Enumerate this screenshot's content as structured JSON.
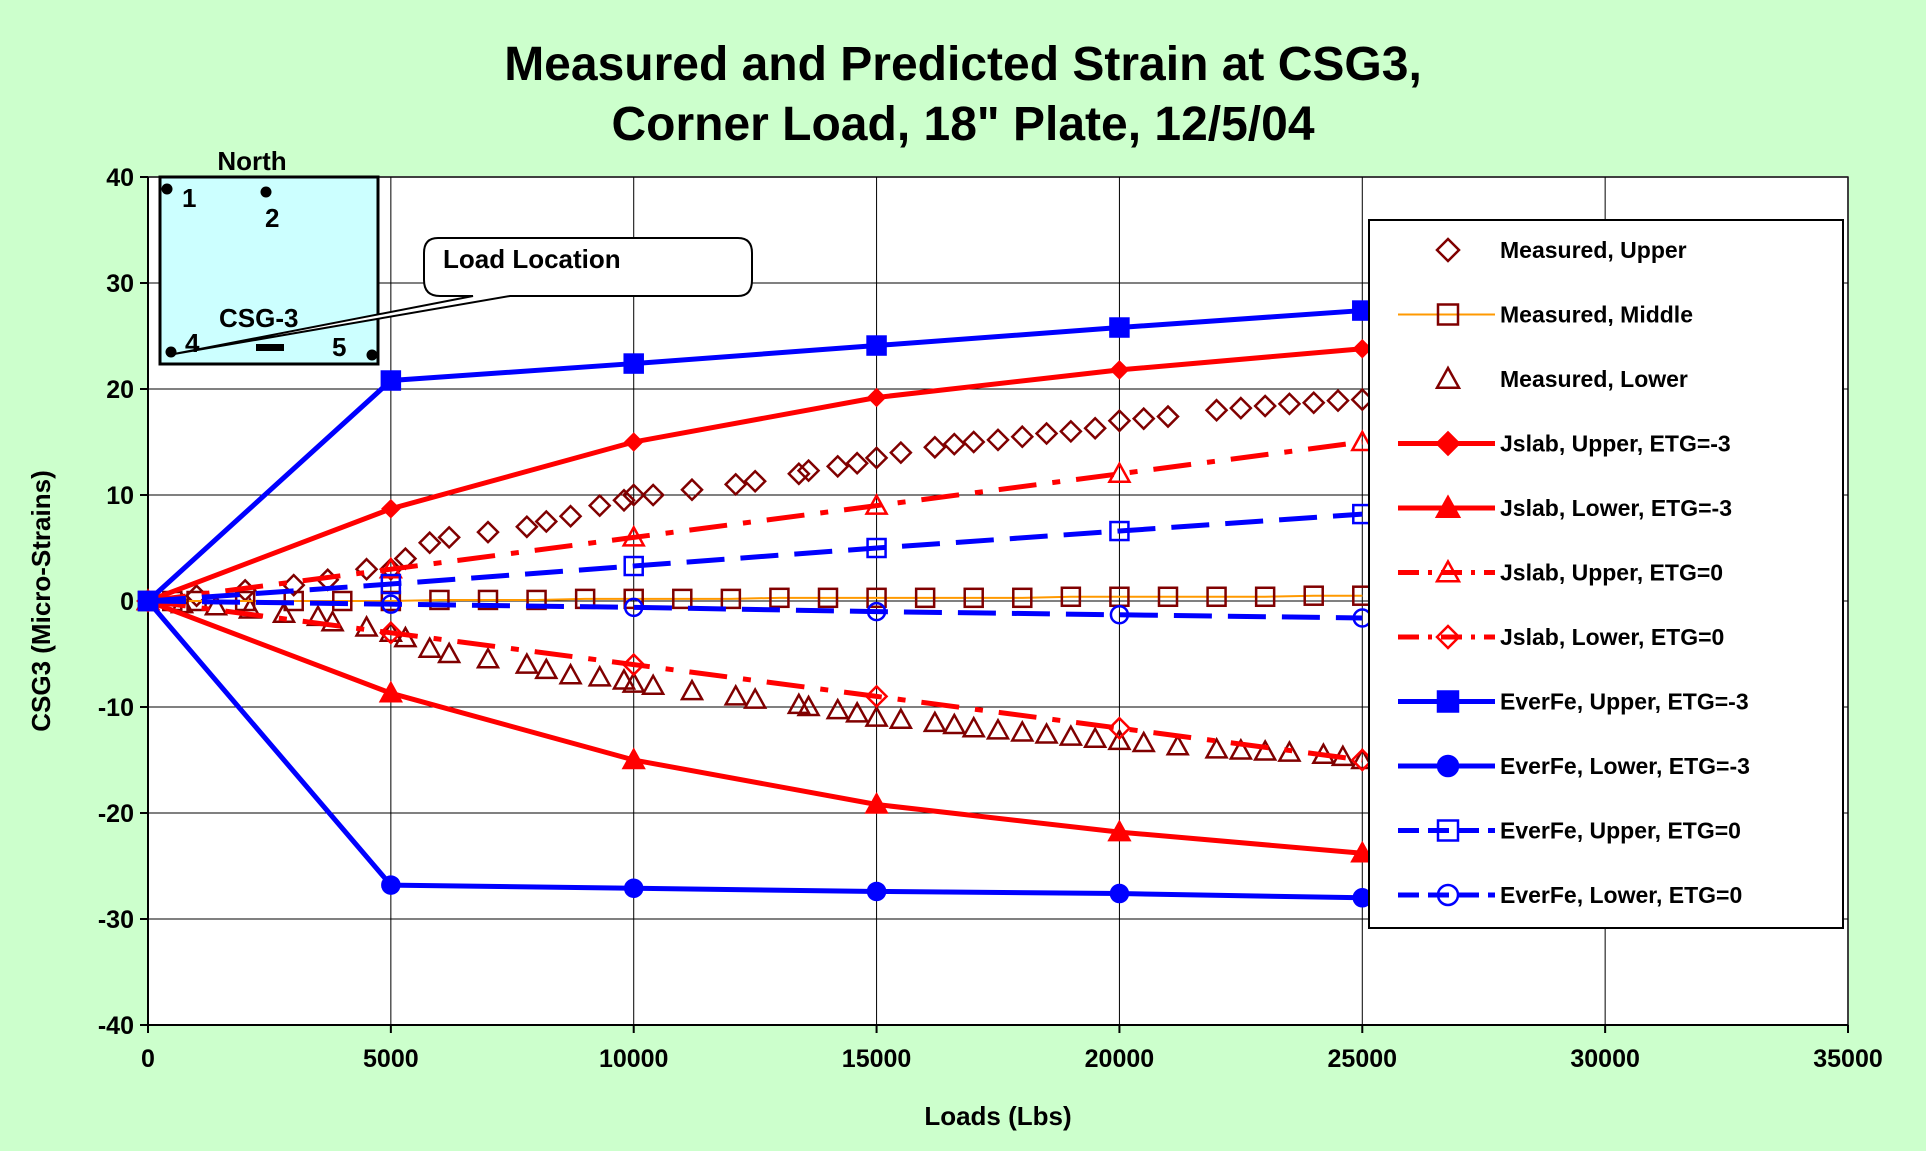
{
  "chart_data": {
    "type": "line",
    "title_lines": [
      "Measured and Predicted Strain at CSG3,",
      "Corner Load, 18\" Plate, 12/5/04"
    ],
    "xlabel": "Loads (Lbs)",
    "ylabel": "CSG3 (Micro-Strains)",
    "xlim": [
      0,
      35000
    ],
    "ylim": [
      -40,
      40
    ],
    "x_ticks": [
      0,
      5000,
      10000,
      15000,
      20000,
      25000,
      30000,
      35000
    ],
    "x_tick_labels": [
      "0",
      "5000",
      "10000",
      "15000",
      "20000",
      "25000",
      "30000",
      "35000"
    ],
    "y_ticks": [
      -40,
      -30,
      -20,
      -10,
      0,
      10,
      20,
      30,
      40
    ],
    "y_tick_labels": [
      "-40",
      "-30",
      "-20",
      "-10",
      "0",
      "10",
      "20",
      "30",
      "40"
    ],
    "grid": true,
    "legend_position": "right",
    "series": [
      {
        "name": "Measured, Upper",
        "marker": "diamond-open",
        "color": "#800000",
        "line": "none",
        "x": [
          0,
          1000,
          2000,
          3000,
          3700,
          4500,
          5000,
          5300,
          5800,
          6200,
          7000,
          7800,
          8200,
          8700,
          9300,
          9800,
          10000,
          10400,
          11200,
          12100,
          12500,
          13400,
          13600,
          14200,
          14600,
          15000,
          15500,
          16200,
          16600,
          17000,
          17500,
          18000,
          18500,
          19000,
          19500,
          20000,
          20500,
          21000,
          22000,
          22500,
          23000,
          23500,
          24000,
          24500,
          25000
        ],
        "y": [
          0,
          0.5,
          1,
          1.5,
          2,
          3,
          3,
          4,
          5.5,
          6,
          6.5,
          7,
          7.5,
          8,
          9,
          9.5,
          10,
          10,
          10.5,
          11,
          11.3,
          12,
          12.3,
          12.7,
          13,
          13.5,
          14,
          14.5,
          14.8,
          15,
          15.2,
          15.5,
          15.8,
          16,
          16.3,
          17,
          17.2,
          17.4,
          18,
          18.2,
          18.4,
          18.6,
          18.7,
          18.9,
          19
        ]
      },
      {
        "name": "Measured, Middle",
        "marker": "square-open",
        "color": "#800000",
        "line": "#ff9900",
        "x": [
          0,
          500,
          1000,
          2000,
          3000,
          4000,
          5000,
          6000,
          7000,
          8000,
          9000,
          10000,
          11000,
          12000,
          13000,
          14000,
          15000,
          16000,
          17000,
          18000,
          19000,
          20000,
          21000,
          22000,
          23000,
          24000,
          25000
        ],
        "y": [
          0,
          0,
          0,
          0,
          0,
          0,
          0,
          0.1,
          0.1,
          0.1,
          0.2,
          0.2,
          0.2,
          0.2,
          0.3,
          0.3,
          0.3,
          0.3,
          0.3,
          0.3,
          0.4,
          0.4,
          0.4,
          0.4,
          0.4,
          0.5,
          0.5
        ]
      },
      {
        "name": "Measured, Lower",
        "marker": "triangle-open",
        "color": "#800000",
        "line": "none",
        "x": [
          0,
          700,
          1400,
          2100,
          2800,
          3500,
          3800,
          4500,
          5000,
          5300,
          5800,
          6200,
          7000,
          7800,
          8200,
          8700,
          9300,
          9800,
          10000,
          10400,
          11200,
          12100,
          12500,
          13400,
          13600,
          14200,
          14600,
          15000,
          15500,
          16200,
          16600,
          17000,
          17500,
          18000,
          18500,
          19000,
          19500,
          20000,
          20500,
          21200,
          22000,
          22500,
          23000,
          23500,
          24200,
          24600,
          25000
        ],
        "y": [
          0,
          -0.3,
          -0.5,
          -0.8,
          -1.2,
          -1.5,
          -2,
          -2.5,
          -3,
          -3.5,
          -4.5,
          -5,
          -5.5,
          -6,
          -6.5,
          -7,
          -7.2,
          -7.5,
          -7.8,
          -8,
          -8.5,
          -9,
          -9.3,
          -9.8,
          -10,
          -10.3,
          -10.6,
          -11,
          -11.2,
          -11.5,
          -11.7,
          -12,
          -12.2,
          -12.4,
          -12.6,
          -12.8,
          -13,
          -13.2,
          -13.4,
          -13.7,
          -14,
          -14.1,
          -14.2,
          -14.3,
          -14.5,
          -14.7,
          -15
        ]
      },
      {
        "name": "Jslab, Upper, ETG=-3",
        "marker": "diamond-filled",
        "color": "#ff0000",
        "line": "solid",
        "x": [
          0,
          5000,
          10000,
          15000,
          20000,
          25000
        ],
        "y": [
          0,
          8.7,
          15,
          19.2,
          21.8,
          23.8
        ]
      },
      {
        "name": "Jslab, Lower, ETG=-3",
        "marker": "triangle-filled",
        "color": "#ff0000",
        "line": "solid",
        "x": [
          0,
          5000,
          10000,
          15000,
          20000,
          25000
        ],
        "y": [
          0,
          -8.7,
          -15,
          -19.2,
          -21.8,
          -23.8
        ]
      },
      {
        "name": "Jslab, Upper, ETG=0",
        "marker": "triangle-open",
        "color": "#ff0000",
        "line": "dashdot",
        "x": [
          0,
          5000,
          10000,
          15000,
          20000,
          25000
        ],
        "y": [
          0,
          3,
          6,
          9,
          12,
          15
        ]
      },
      {
        "name": "Jslab, Lower, ETG=0",
        "marker": "diamond-open",
        "color": "#ff0000",
        "line": "dashdot",
        "x": [
          0,
          5000,
          10000,
          15000,
          20000,
          25000
        ],
        "y": [
          0,
          -3,
          -6,
          -9,
          -12,
          -15
        ]
      },
      {
        "name": "EverFe, Upper, ETG=-3",
        "marker": "square-filled",
        "color": "#0000ff",
        "line": "solid",
        "x": [
          0,
          5000,
          10000,
          15000,
          20000,
          25000
        ],
        "y": [
          0,
          20.8,
          22.4,
          24.1,
          25.8,
          27.4
        ]
      },
      {
        "name": "EverFe, Lower, ETG=-3",
        "marker": "circle-filled",
        "color": "#0000ff",
        "line": "solid",
        "x": [
          0,
          5000,
          10000,
          15000,
          20000,
          25000
        ],
        "y": [
          0,
          -26.8,
          -27.1,
          -27.4,
          -27.6,
          -28
        ]
      },
      {
        "name": "EverFe, Upper, ETG=0",
        "marker": "square-open",
        "color": "#0000ff",
        "line": "dashed",
        "x": [
          0,
          5000,
          10000,
          15000,
          20000,
          25000
        ],
        "y": [
          0,
          1.6,
          3.3,
          5,
          6.6,
          8.2
        ]
      },
      {
        "name": "EverFe, Lower, ETG=0",
        "marker": "circle-open",
        "color": "#0000ff",
        "line": "dashed",
        "x": [
          0,
          5000,
          10000,
          15000,
          20000,
          25000
        ],
        "y": [
          0,
          -0.3,
          -0.6,
          -1,
          -1.3,
          -1.6
        ]
      }
    ],
    "inset": {
      "north_label": "North",
      "point_labels": [
        "1",
        "2",
        "4",
        "5"
      ],
      "gauge_label": "CSG-3",
      "callout_text": "Load Location"
    }
  }
}
